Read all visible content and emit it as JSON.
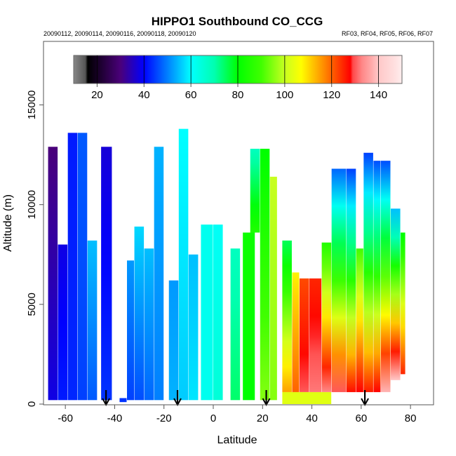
{
  "chart_data": {
    "type": "heatmap",
    "title": "HIPPO1 Southbound CO_CCG",
    "subtitle_left": "20090112, 20090114, 20090116, 20090118, 20090120",
    "subtitle_right": "RF03, RF04, RF05, RF06, RF07",
    "xlabel": "Latitude",
    "ylabel": "Altitude (m)",
    "xlim": [
      -70,
      90
    ],
    "ylim": [
      0,
      17500
    ],
    "x_ticks": [
      -60,
      -40,
      -20,
      0,
      20,
      40,
      60,
      80
    ],
    "x_tick_labels": [
      "-60",
      "-40",
      "-20",
      "0",
      "20",
      "40",
      "60",
      "80"
    ],
    "y_ticks": [
      0,
      5000,
      10000,
      15000
    ],
    "y_tick_labels": [
      "0",
      "5000",
      "10000",
      "15000"
    ],
    "grid": false,
    "colorbar": {
      "range": [
        10,
        150
      ],
      "ticks": [
        20,
        40,
        60,
        80,
        100,
        120,
        140
      ],
      "tick_labels": [
        "20",
        "40",
        "60",
        "80",
        "100",
        "120",
        "140"
      ],
      "placement": "top-inside",
      "stops": [
        {
          "v": 10,
          "c": "#888888"
        },
        {
          "v": 15,
          "c": "#555555"
        },
        {
          "v": 16,
          "c": "#000000"
        },
        {
          "v": 30,
          "c": "#4a007a"
        },
        {
          "v": 40,
          "c": "#0000ff"
        },
        {
          "v": 60,
          "c": "#00ffff"
        },
        {
          "v": 70,
          "c": "#00ffb0"
        },
        {
          "v": 80,
          "c": "#00ff00"
        },
        {
          "v": 90,
          "c": "#40ff00"
        },
        {
          "v": 100,
          "c": "#c8ff20"
        },
        {
          "v": 107,
          "c": "#ffff00"
        },
        {
          "v": 115,
          "c": "#ffa000"
        },
        {
          "v": 128,
          "c": "#ff0000"
        },
        {
          "v": 129,
          "c": "#ff4848"
        },
        {
          "v": 133,
          "c": "#ff8888"
        },
        {
          "v": 137,
          "c": "#ffaaaa"
        },
        {
          "v": 140,
          "c": "#ffc8c8"
        },
        {
          "v": 147,
          "c": "#ffe0e0"
        },
        {
          "v": 150,
          "c": "#ffeeee"
        }
      ]
    },
    "profile_arrows_latitude": [
      -43.5,
      -14.5,
      21.5,
      61.5
    ],
    "profiles": [
      {
        "lat": [
          -67,
          -63
        ],
        "top": 12900,
        "bottom": 200,
        "low": 38,
        "high": 30
      },
      {
        "lat": [
          -63,
          -59
        ],
        "top": 8000,
        "bottom": 200,
        "low": 42,
        "high": 38
      },
      {
        "lat": [
          -59,
          -55
        ],
        "top": 13600,
        "bottom": 200,
        "low": 43,
        "high": 42
      },
      {
        "lat": [
          -55,
          -51
        ],
        "top": 13600,
        "bottom": 200,
        "low": 45,
        "high": 47
      },
      {
        "lat": [
          -51,
          -47
        ],
        "top": 8200,
        "bottom": 200,
        "low": 47,
        "high": 55
      },
      {
        "lat": [
          -45.5,
          -41
        ],
        "top": 12900,
        "bottom": 200,
        "low": 44,
        "high": 37
      },
      {
        "lat": [
          -38,
          -35
        ],
        "top": 300,
        "bottom": 100,
        "low": 44,
        "high": 44
      },
      {
        "lat": [
          -35,
          -32
        ],
        "top": 7200,
        "bottom": 200,
        "low": 45,
        "high": 52
      },
      {
        "lat": [
          -32,
          -28
        ],
        "top": 8900,
        "bottom": 200,
        "low": 46,
        "high": 57
      },
      {
        "lat": [
          -28,
          -24
        ],
        "top": 7800,
        "bottom": 200,
        "low": 48,
        "high": 55
      },
      {
        "lat": [
          -24,
          -20
        ],
        "top": 12900,
        "bottom": 200,
        "low": 50,
        "high": 54
      },
      {
        "lat": [
          -18,
          -14
        ],
        "top": 6200,
        "bottom": 200,
        "low": 54,
        "high": 52
      },
      {
        "lat": [
          -14,
          -10
        ],
        "top": 13800,
        "bottom": 200,
        "low": 56,
        "high": 60
      },
      {
        "lat": [
          -10,
          -6
        ],
        "top": 7500,
        "bottom": 200,
        "low": 58,
        "high": 55
      },
      {
        "lat": [
          -5,
          0
        ],
        "top": 9000,
        "bottom": 200,
        "low": 62,
        "high": 62
      },
      {
        "lat": [
          0,
          4
        ],
        "top": 9000,
        "bottom": 200,
        "low": 65,
        "high": 61
      },
      {
        "lat": [
          7,
          11
        ],
        "top": 7800,
        "bottom": 200,
        "low": 74,
        "high": 68
      },
      {
        "lat": [
          12,
          17
        ],
        "top": 8600,
        "bottom": 200,
        "low": 80,
        "high": 82
      },
      {
        "lat": [
          15,
          19
        ],
        "top": 12800,
        "bottom": 8600,
        "low": 85,
        "high": 68
      },
      {
        "lat": [
          19,
          23
        ],
        "top": 12800,
        "bottom": 200,
        "low": 95,
        "high": 80
      },
      {
        "lat": [
          23,
          26
        ],
        "top": 11400,
        "bottom": 200,
        "low": 95,
        "high": 100
      },
      {
        "lat": [
          28,
          32
        ],
        "top": 8200,
        "bottom": 600,
        "low": 115,
        "high": 75
      },
      {
        "lat": [
          32,
          35
        ],
        "top": 6600,
        "bottom": 600,
        "low": 120,
        "high": 108
      },
      {
        "lat": [
          35,
          39
        ],
        "top": 6300,
        "bottom": 600,
        "low": 130,
        "high": 122
      },
      {
        "lat": [
          39,
          44
        ],
        "top": 6300,
        "bottom": 600,
        "low": 132,
        "high": 125
      },
      {
        "lat": [
          44,
          48
        ],
        "top": 8100,
        "bottom": 600,
        "low": 133,
        "high": 85
      },
      {
        "lat": [
          48,
          54
        ],
        "top": 11800,
        "bottom": 600,
        "low": 130,
        "high": 48
      },
      {
        "lat": [
          54,
          58
        ],
        "top": 11800,
        "bottom": 600,
        "low": 127,
        "high": 45
      },
      {
        "lat": [
          58,
          61
        ],
        "top": 7800,
        "bottom": 600,
        "low": 128,
        "high": 90
      },
      {
        "lat": [
          61,
          65
        ],
        "top": 12600,
        "bottom": 600,
        "low": 126,
        "high": 45
      },
      {
        "lat": [
          65,
          68
        ],
        "top": 12200,
        "bottom": 600,
        "low": 128,
        "high": 46
      },
      {
        "lat": [
          68,
          72
        ],
        "top": 12200,
        "bottom": 600,
        "low": 138,
        "high": 46
      },
      {
        "lat": [
          72,
          76
        ],
        "top": 9800,
        "bottom": 1200,
        "low": 140,
        "high": 55
      },
      {
        "lat": [
          76,
          78
        ],
        "top": 8600,
        "bottom": 1500,
        "low": 125,
        "high": 80
      },
      {
        "lat": [
          28,
          48
        ],
        "top": 600,
        "bottom": 0,
        "low": 103,
        "high": 103
      }
    ]
  }
}
